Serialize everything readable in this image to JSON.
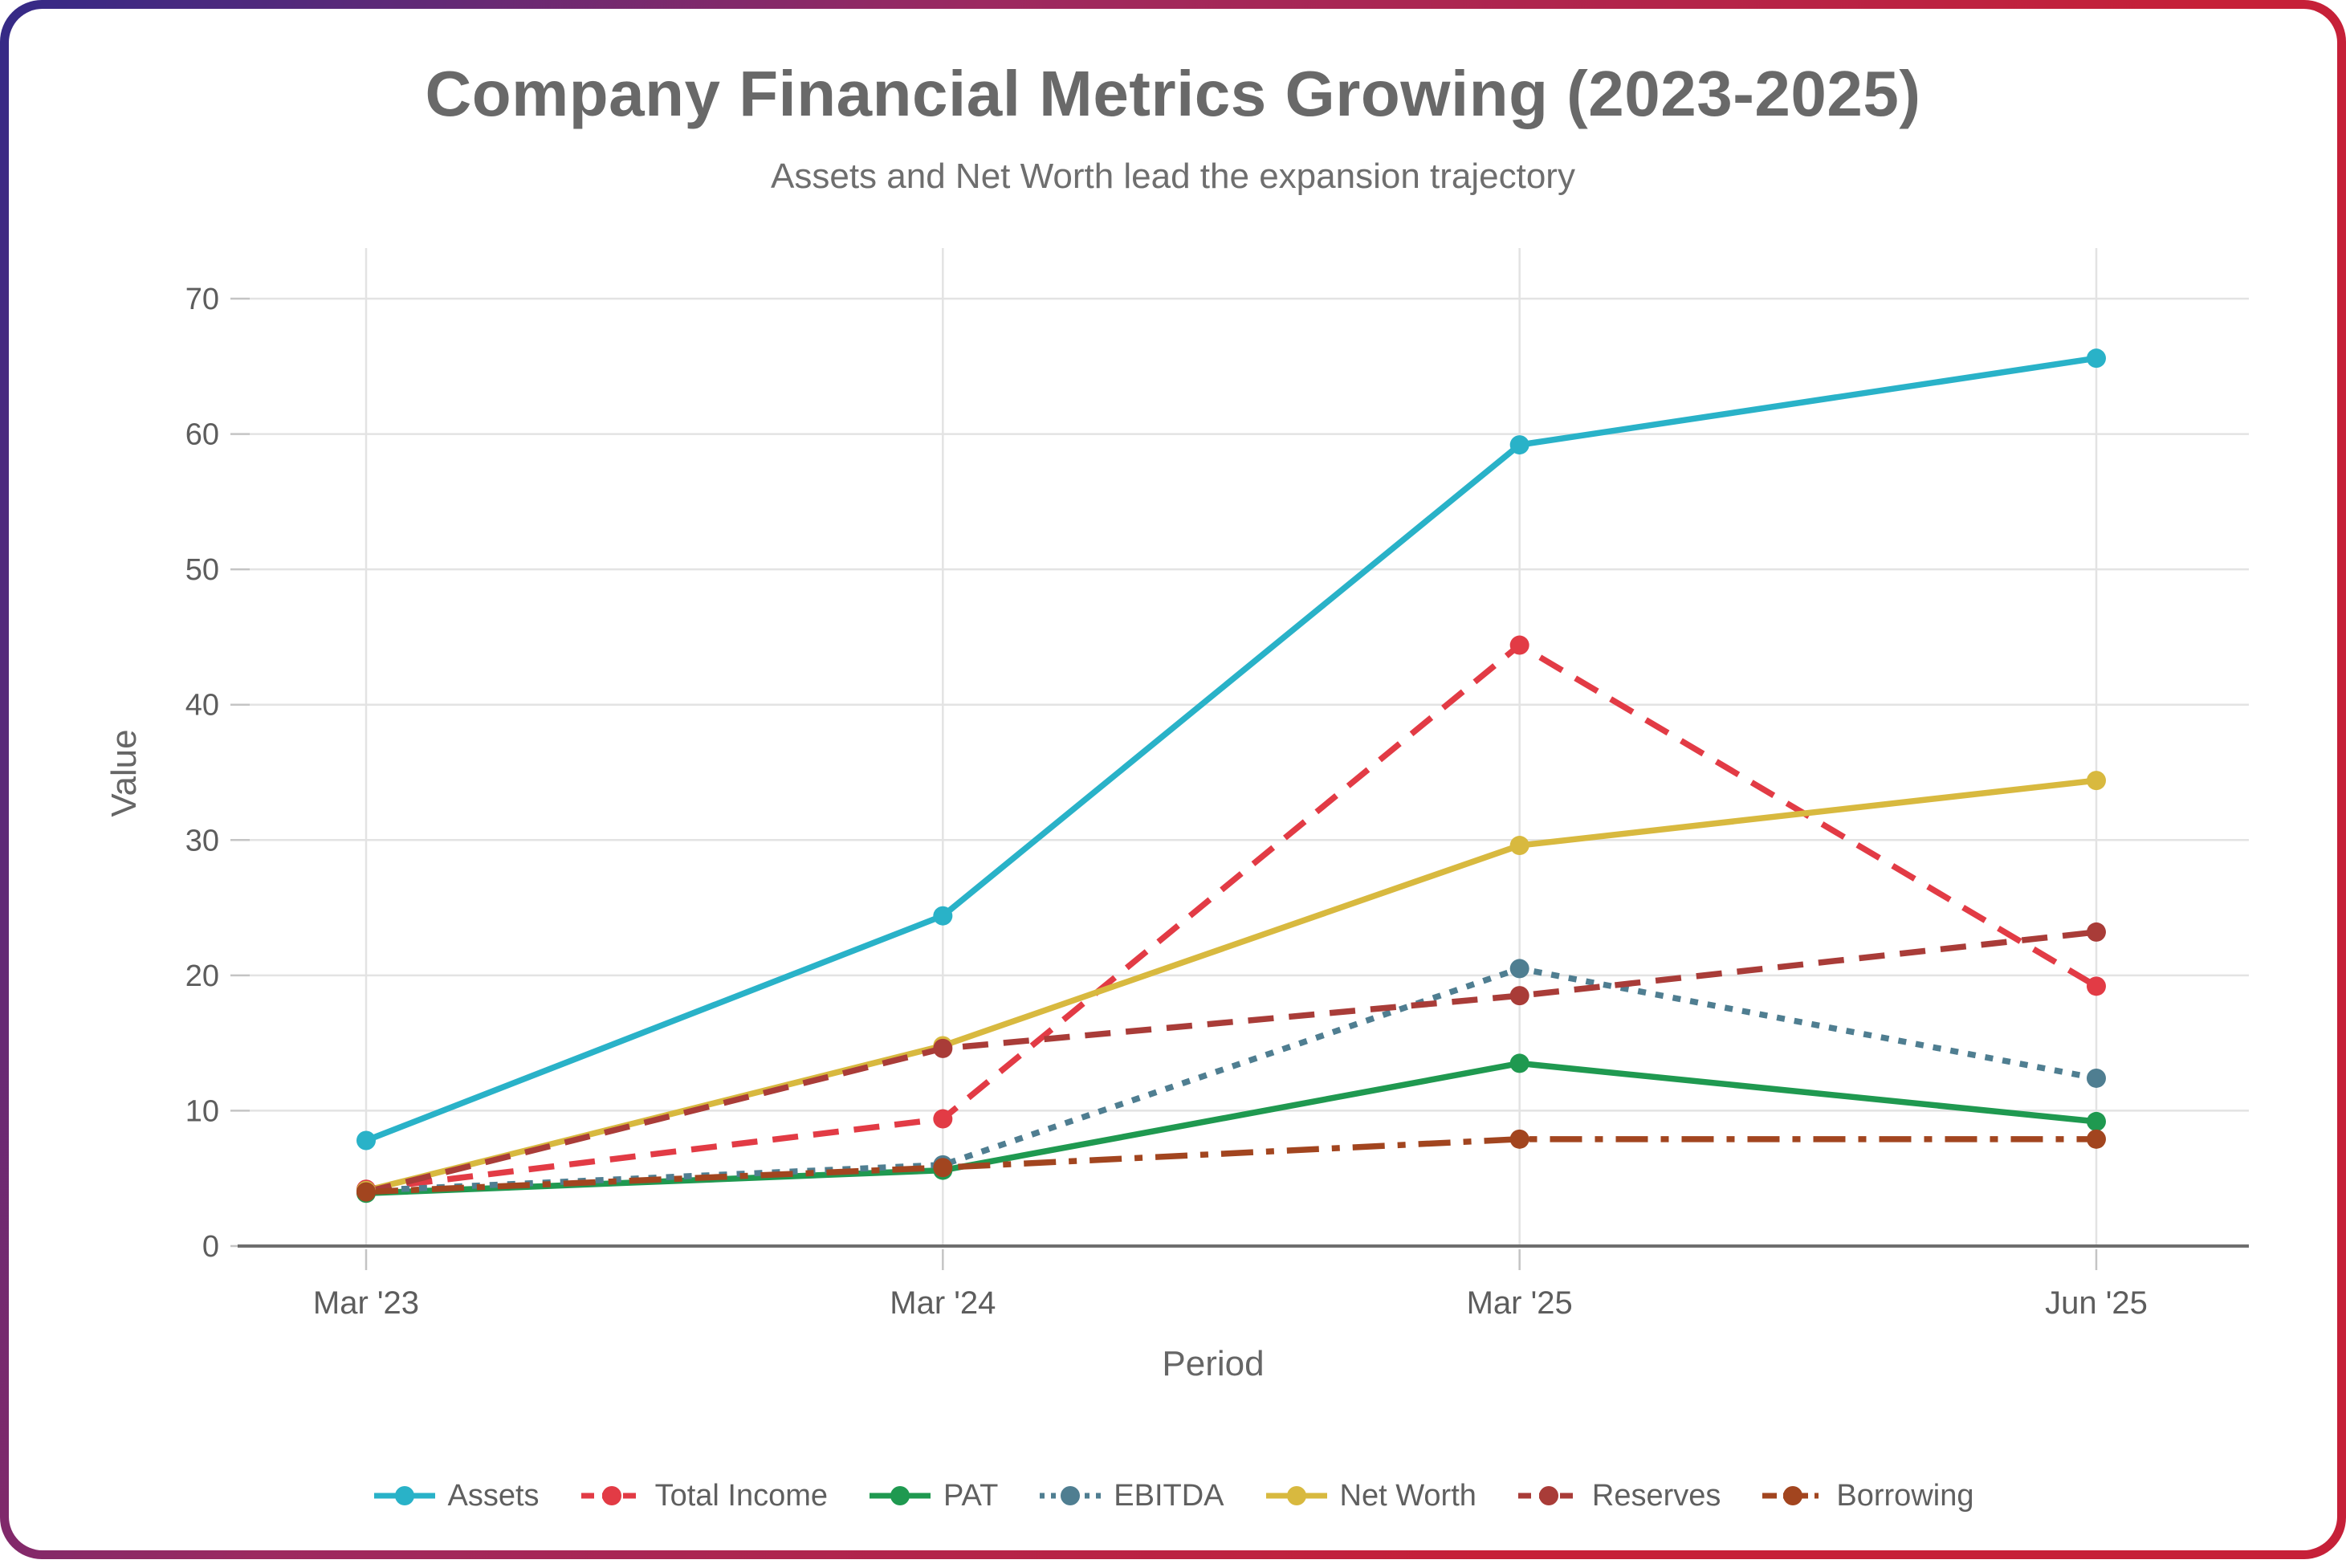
{
  "card": {
    "border_gradient": [
      "#342a87",
      "#9c2960",
      "#c62038"
    ],
    "background": "#ffffff"
  },
  "header": {
    "title": "Company Financial Metrics Growing (2023-2025)",
    "subtitle": "Assets and Net Worth lead the expansion trajectory"
  },
  "chart_data": {
    "type": "line",
    "title": "Company Financial Metrics Growing (2023-2025)",
    "subtitle": "Assets and Net Worth lead the expansion trajectory",
    "xlabel": "Period",
    "ylabel": "Value",
    "categories": [
      "Mar '23",
      "Mar '24",
      "Mar '25",
      "Jun '25"
    ],
    "yticks": [
      0,
      10,
      20,
      30,
      40,
      50,
      60,
      70
    ],
    "ylim": [
      0,
      75
    ],
    "grid": true,
    "legend_position": "bottom",
    "colors": {
      "grid_line": "#e3e3e3",
      "axis_line": "#6e6e6e",
      "tick_text": "#5d5d5d",
      "axis_title_text": "#666666"
    },
    "series": [
      {
        "name": "Assets",
        "color": "#29b2c8",
        "line_style": "solid",
        "values": [
          7.8,
          24.4,
          59.2,
          65.6
        ]
      },
      {
        "name": "Total Income",
        "color": "#e23b45",
        "line_style": "dashed",
        "values": [
          4.2,
          9.4,
          44.4,
          19.2
        ]
      },
      {
        "name": "PAT",
        "color": "#1f9950",
        "line_style": "solid",
        "values": [
          3.9,
          5.6,
          13.5,
          9.2
        ]
      },
      {
        "name": "EBITDA",
        "color": "#4f7e91",
        "line_style": "dotted",
        "values": [
          4.1,
          6.0,
          20.5,
          12.4
        ]
      },
      {
        "name": "Net Worth",
        "color": "#d8b93f",
        "line_style": "solid",
        "values": [
          4.1,
          14.8,
          29.6,
          34.4
        ]
      },
      {
        "name": "Reserves",
        "color": "#a93c38",
        "line_style": "dashed",
        "values": [
          4.0,
          14.6,
          18.5,
          23.2
        ]
      },
      {
        "name": "Borrowing",
        "color": "#a2451f",
        "line_style": "dashdot",
        "values": [
          4.0,
          5.8,
          7.9,
          7.9
        ]
      }
    ]
  }
}
